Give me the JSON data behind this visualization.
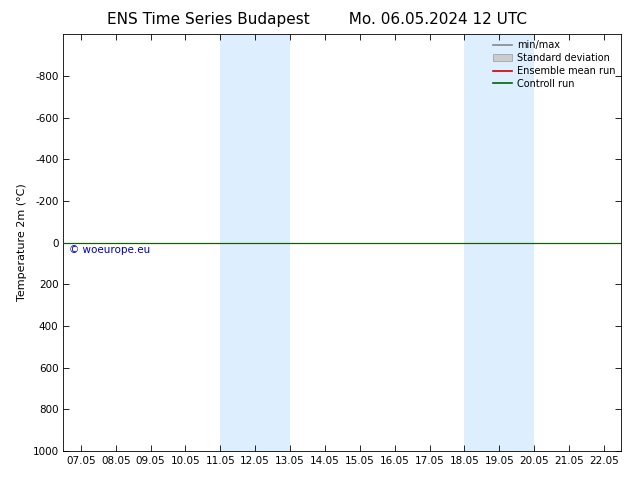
{
  "title_left": "ENS Time Series Budapest",
  "title_right": "Mo. 06.05.2024 12 UTC",
  "ylabel": "Temperature 2m (°C)",
  "xlabel_ticks": [
    "07.05",
    "08.05",
    "09.05",
    "10.05",
    "11.05",
    "12.05",
    "13.05",
    "14.05",
    "15.05",
    "16.05",
    "17.05",
    "18.05",
    "19.05",
    "20.05",
    "21.05",
    "22.05"
  ],
  "xlim_min": -0.5,
  "xlim_max": 15.5,
  "ylim_bottom": 1000,
  "ylim_top": -1000,
  "yticks": [
    -800,
    -600,
    -400,
    -200,
    0,
    200,
    400,
    600,
    800,
    1000
  ],
  "background_color": "#ffffff",
  "plot_bg_color": "#ffffff",
  "shaded_regions": [
    {
      "x_start": 4.0,
      "x_end": 6.0,
      "color": "#ddeeff"
    },
    {
      "x_start": 11.0,
      "x_end": 13.0,
      "color": "#ddeeff"
    }
  ],
  "green_line_y": 0,
  "green_line_color": "#006600",
  "red_line_color": "#cc0000",
  "watermark_text": "© woeurope.eu",
  "watermark_color": "#0000bb",
  "legend_items": [
    {
      "label": "min/max",
      "color": "#888888",
      "type": "line",
      "lw": 1.2
    },
    {
      "label": "Standard deviation",
      "color": "#cccccc",
      "type": "rect"
    },
    {
      "label": "Ensemble mean run",
      "color": "#cc0000",
      "type": "line",
      "lw": 1.2
    },
    {
      "label": "Controll run",
      "color": "#006600",
      "type": "line",
      "lw": 1.2
    }
  ],
  "border_color": "#000000",
  "tick_color": "#000000",
  "title_fontsize": 11,
  "label_fontsize": 8,
  "tick_fontsize": 7.5,
  "legend_fontsize": 7
}
